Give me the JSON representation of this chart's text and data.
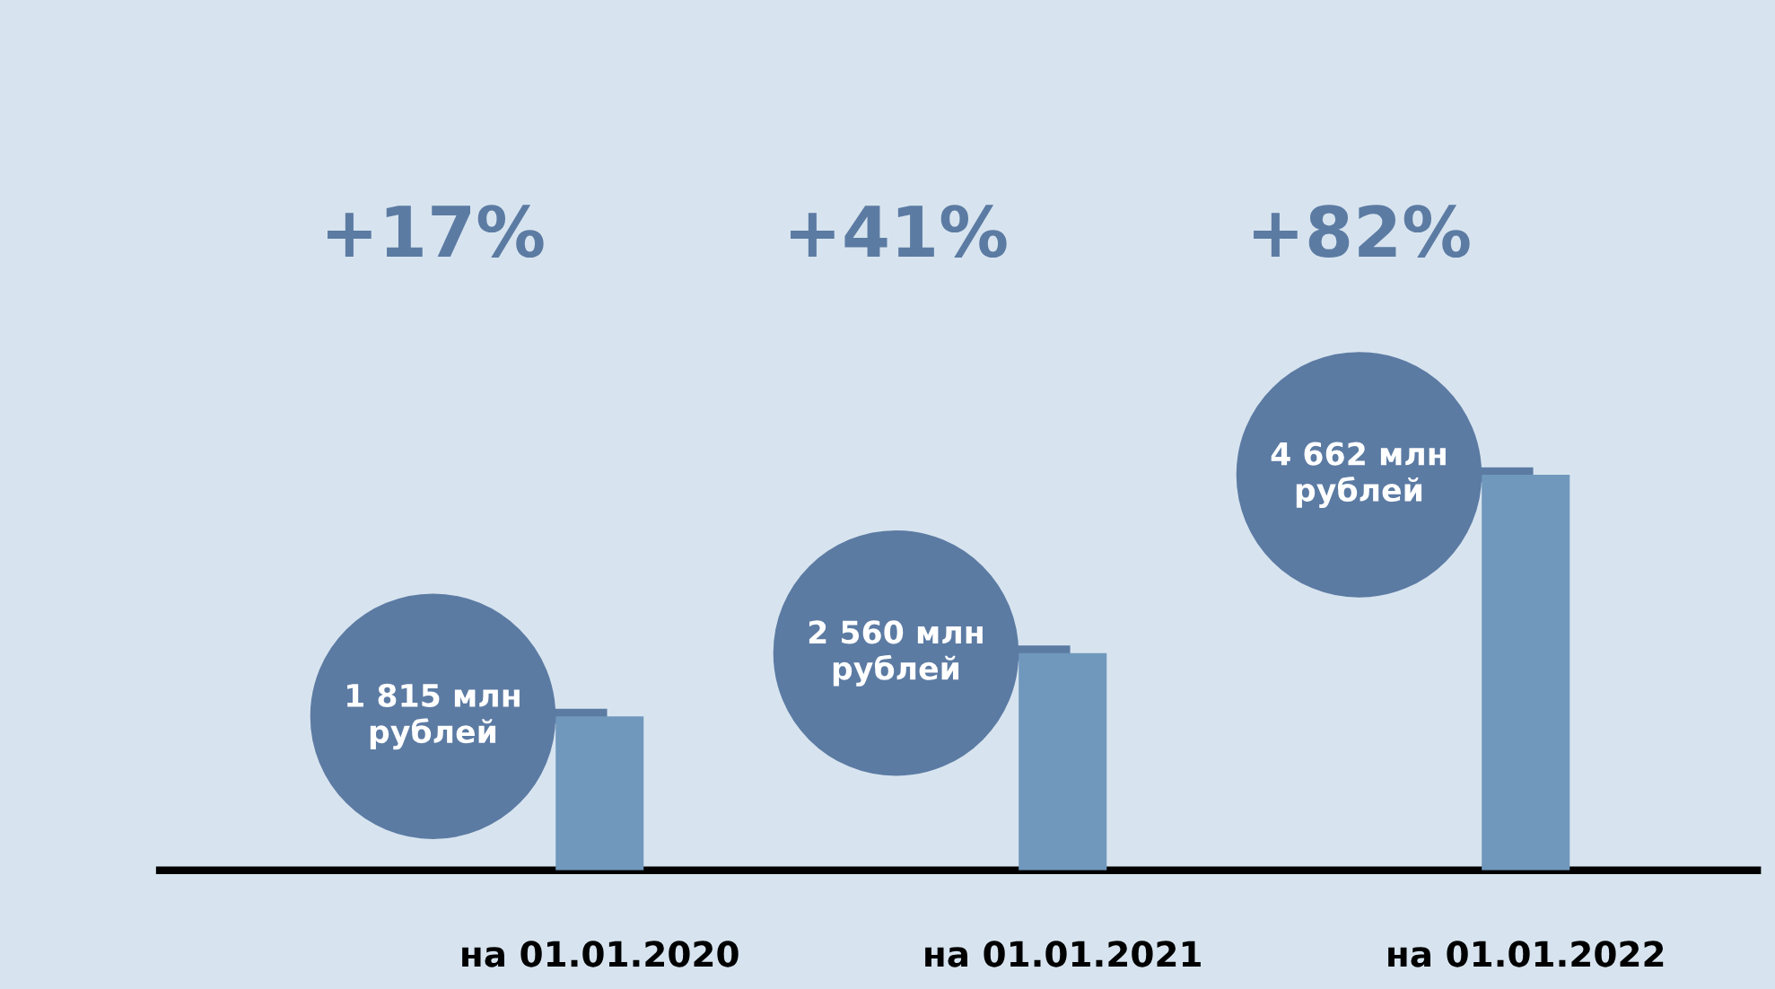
{
  "chart_data": {
    "type": "bar",
    "categories": [
      "на 01.01.2020",
      "на 01.01.2021",
      "на 01.01.2022"
    ],
    "values": [
      1815,
      2560,
      4662
    ],
    "value_labels": [
      "1 815 млн\nрублей",
      "2 560 млн\nрублей",
      "4 662 млн\nрублей"
    ],
    "color": "#7098bd",
    "annotations": [
      "+17%",
      "+41%",
      "+82%"
    ],
    "grid": false
  }
}
